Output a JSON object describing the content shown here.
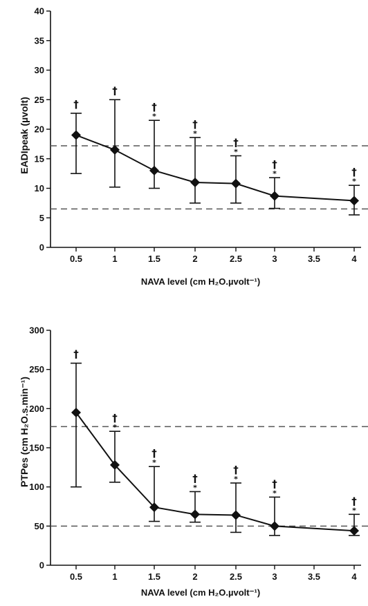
{
  "chart_data": [
    {
      "type": "line",
      "xlabel": "NAVA level (cm H₂O.µvolt⁻¹)",
      "ylabel": "EADIpeak (µvolt)",
      "ylim": [
        0,
        40
      ],
      "yticks": [
        "0",
        "5",
        "10",
        "15",
        "20",
        "25",
        "30",
        "35",
        "40"
      ],
      "xticks": [
        "0.5",
        "1",
        "1.5",
        "2",
        "2.5",
        "3",
        "3.5",
        "4"
      ],
      "x": [
        0.5,
        1,
        1.5,
        2,
        2.5,
        3,
        4
      ],
      "values": [
        19,
        16.5,
        13,
        11,
        10.8,
        8.7,
        7.9
      ],
      "err_low": [
        12.5,
        10.2,
        10,
        7.5,
        7.5,
        6.6,
        5.5
      ],
      "err_high": [
        22.7,
        25,
        21.5,
        18.6,
        15.5,
        11.8,
        10.5
      ],
      "ref_lines": [
        17.2,
        6.5
      ],
      "daggers": [
        "†",
        "†",
        "†",
        "†",
        "†",
        "†",
        "†"
      ],
      "stars": [
        "",
        "",
        "*",
        "*",
        "*",
        "*",
        "*"
      ],
      "grid": false
    },
    {
      "type": "line",
      "xlabel": "NAVA level (cm H₂O.µvolt⁻¹)",
      "ylabel": "PTPes (cm H₂O.s.min⁻¹)",
      "ylim": [
        0,
        300
      ],
      "yticks": [
        "0",
        "50",
        "100",
        "150",
        "200",
        "250",
        "300"
      ],
      "xticks": [
        "0.5",
        "1",
        "1.5",
        "2",
        "2.5",
        "3",
        "3.5",
        "4"
      ],
      "x": [
        0.5,
        1,
        1.5,
        2,
        2.5,
        3,
        4
      ],
      "values": [
        195,
        128,
        74,
        65,
        64,
        50,
        44
      ],
      "err_low": [
        100,
        106,
        56,
        55,
        42,
        38,
        38
      ],
      "err_high": [
        258,
        171,
        126,
        94,
        105,
        87,
        65
      ],
      "ref_lines": [
        177,
        50
      ],
      "daggers": [
        "†",
        "†",
        "†",
        "†",
        "†",
        "†",
        "†"
      ],
      "stars": [
        "",
        "*",
        "*",
        "*",
        "*",
        "*",
        "*"
      ],
      "grid": false
    }
  ]
}
